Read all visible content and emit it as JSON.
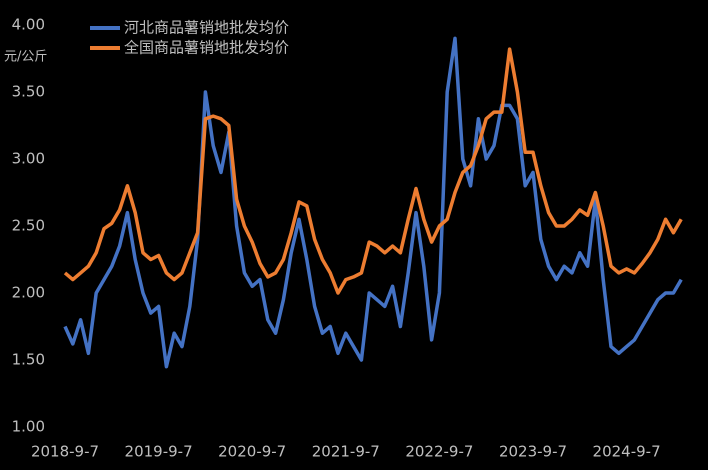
{
  "chart_data": {
    "type": "line",
    "y_label": "元/公斤",
    "categories": [
      "2018-9-7",
      null,
      null,
      null,
      null,
      null,
      null,
      null,
      null,
      null,
      null,
      null,
      "2019-9-7",
      null,
      null,
      null,
      null,
      null,
      null,
      null,
      null,
      null,
      null,
      null,
      "2020-9-7",
      null,
      null,
      null,
      null,
      null,
      null,
      null,
      null,
      null,
      null,
      null,
      "2021-9-7",
      null,
      null,
      null,
      null,
      null,
      null,
      null,
      null,
      null,
      null,
      null,
      "2022-9-7",
      null,
      null,
      null,
      null,
      null,
      null,
      null,
      null,
      null,
      null,
      null,
      "2023-9-7",
      null,
      null,
      null,
      null,
      null,
      null,
      null,
      null,
      null,
      null,
      null,
      "2024-9-7",
      null,
      null,
      null,
      null,
      null,
      null,
      null
    ],
    "series": [
      {
        "name": "河北商品薯销地批发均价",
        "color": "#4472c4",
        "values": [
          1.75,
          1.62,
          1.8,
          1.55,
          2.0,
          2.1,
          2.2,
          2.35,
          2.6,
          2.25,
          2.0,
          1.85,
          1.9,
          1.45,
          1.7,
          1.6,
          1.9,
          2.4,
          3.5,
          3.1,
          2.9,
          3.2,
          2.5,
          2.15,
          2.05,
          2.1,
          1.8,
          1.7,
          1.95,
          2.3,
          2.55,
          2.25,
          1.9,
          1.7,
          1.75,
          1.55,
          1.7,
          1.6,
          1.5,
          2.0,
          1.95,
          1.9,
          2.05,
          1.75,
          2.15,
          2.6,
          2.2,
          1.65,
          2.0,
          3.5,
          3.9,
          3.0,
          2.8,
          3.3,
          3.0,
          3.1,
          3.4,
          3.4,
          3.3,
          2.8,
          2.9,
          2.4,
          2.2,
          2.1,
          2.2,
          2.15,
          2.3,
          2.2,
          2.7,
          2.1,
          1.6,
          1.55,
          1.6,
          1.65,
          1.75,
          1.85,
          1.95,
          2.0,
          2.0,
          2.1
        ]
      },
      {
        "name": "全国商品薯销地批发均价",
        "color": "#ed7d31",
        "values": [
          2.15,
          2.1,
          2.15,
          2.2,
          2.3,
          2.48,
          2.52,
          2.62,
          2.8,
          2.6,
          2.3,
          2.25,
          2.28,
          2.15,
          2.1,
          2.15,
          2.3,
          2.45,
          3.3,
          3.32,
          3.3,
          3.25,
          2.7,
          2.5,
          2.38,
          2.22,
          2.12,
          2.15,
          2.25,
          2.45,
          2.68,
          2.65,
          2.4,
          2.25,
          2.15,
          2.0,
          2.1,
          2.12,
          2.15,
          2.38,
          2.35,
          2.3,
          2.35,
          2.3,
          2.55,
          2.78,
          2.55,
          2.38,
          2.5,
          2.55,
          2.75,
          2.9,
          2.95,
          3.1,
          3.3,
          3.35,
          3.35,
          3.82,
          3.5,
          3.05,
          3.05,
          2.8,
          2.6,
          2.5,
          2.5,
          2.55,
          2.62,
          2.58,
          2.75,
          2.5,
          2.2,
          2.15,
          2.18,
          2.15,
          2.22,
          2.3,
          2.4,
          2.55,
          2.45,
          2.55
        ]
      }
    ],
    "ylim": [
      1.0,
      4.0
    ],
    "yticks": [
      {
        "value": 1.0,
        "label": "1.00"
      },
      {
        "value": 1.5,
        "label": "1.50"
      },
      {
        "value": 2.0,
        "label": "2.00"
      },
      {
        "value": 2.5,
        "label": "2.50"
      },
      {
        "value": 3.0,
        "label": "3.00"
      },
      {
        "value": 3.5,
        "label": "3.50"
      },
      {
        "value": 4.0,
        "label": "4.00"
      }
    ],
    "grid": false
  }
}
